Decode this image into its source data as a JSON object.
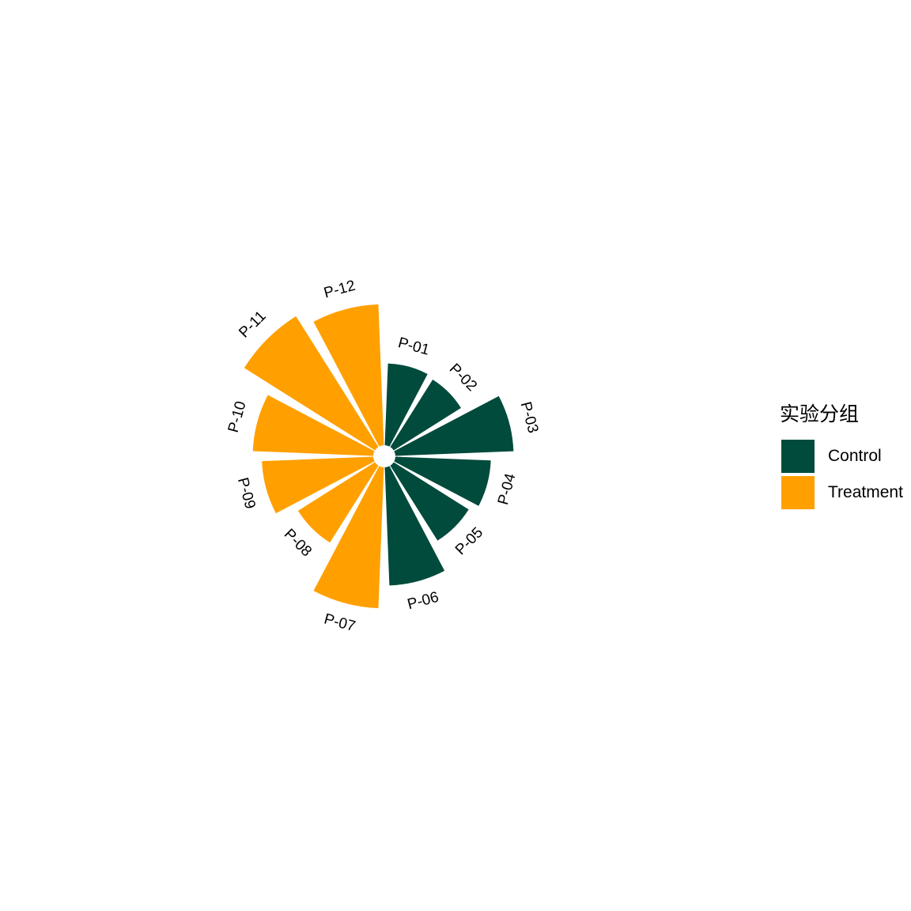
{
  "chart_data": {
    "type": "bar",
    "coord": "polar",
    "categories": [
      "P-01",
      "P-02",
      "P-03",
      "P-04",
      "P-05",
      "P-06",
      "P-07",
      "P-08",
      "P-09",
      "P-10",
      "P-11",
      "P-12"
    ],
    "groups": [
      "Control",
      "Control",
      "Control",
      "Control",
      "Control",
      "Control",
      "Treatment",
      "Treatment",
      "Treatment",
      "Treatment",
      "Treatment",
      "Treatment"
    ],
    "values": [
      180,
      175,
      260,
      210,
      195,
      260,
      310,
      200,
      245,
      265,
      340,
      310
    ],
    "legend": {
      "title": "实验分组",
      "position": "right",
      "entries": [
        {
          "name": "Control",
          "color": "#004B3C"
        },
        {
          "name": "Treatment",
          "color": "#FFA000"
        }
      ]
    },
    "grid": false
  }
}
